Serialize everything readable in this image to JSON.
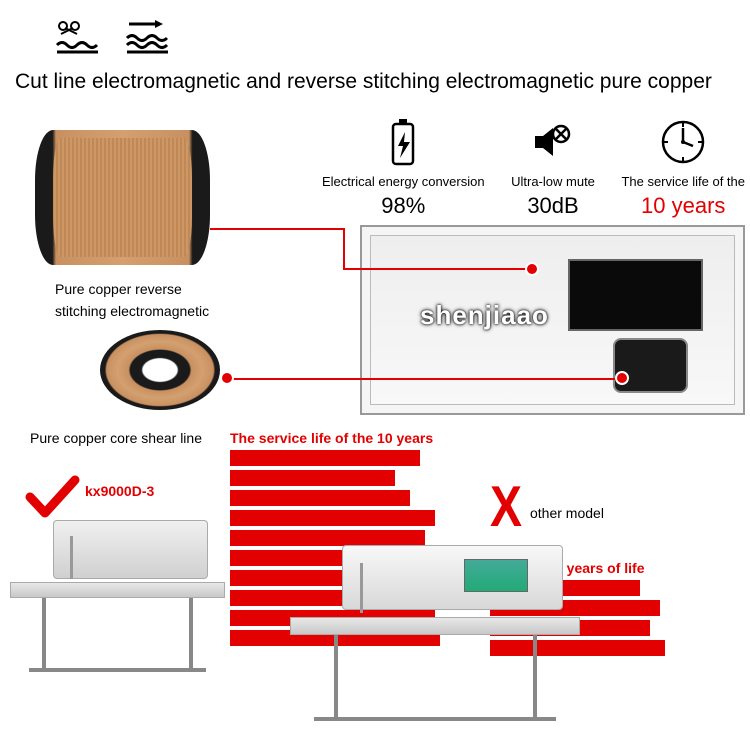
{
  "title": "Cut line electromagnetic and reverse stitching electromagnetic pure copper",
  "label_coil1_line1": "Pure copper reverse",
  "label_coil1_line2": "stitching electromagnetic",
  "label_coil2": "Pure copper core shear line",
  "specs": {
    "energy": {
      "label": "Electrical energy conversion",
      "value": "98%"
    },
    "mute": {
      "label": "Ultra-low mute",
      "value": "30dB"
    },
    "life": {
      "label": "The service life of the",
      "value": "10 years"
    }
  },
  "watermark": "shenjiaao",
  "bar_title": "The service life of the 10 years",
  "model1": "kx9000D-3",
  "model2": "other model",
  "life3": "3 years of life",
  "bars_left_widths": [
    190,
    165,
    180,
    205,
    195,
    210,
    200,
    195,
    205,
    210
  ],
  "bars_right_widths": [
    150,
    170,
    160,
    175
  ],
  "colors": {
    "accent": "#e30000",
    "coil": "#d4a070",
    "dark": "#1a1a1a"
  }
}
